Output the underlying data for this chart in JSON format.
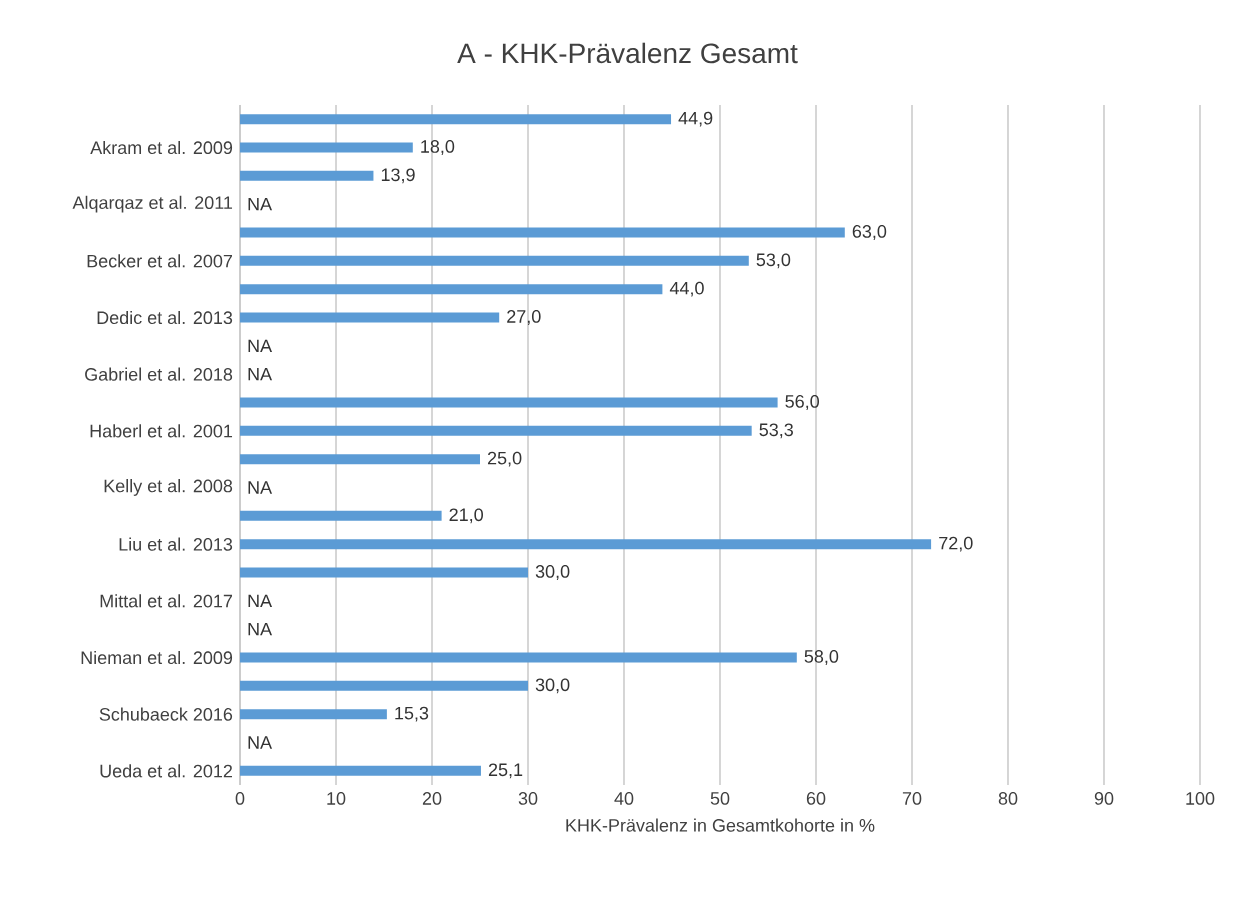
{
  "chart_data": {
    "type": "bar",
    "orientation": "horizontal",
    "title": "A - KHK-Prävalenz Gesamt",
    "xlabel": "KHK-Prävalenz in Gesamtkohorte in %",
    "categories": [
      null,
      "Akram et al. 2009",
      null,
      "Alqarqaz et al. 2011",
      null,
      "Becker et al. 2007",
      null,
      "Dedic et al. 2013",
      null,
      "Gabriel et al. 2018",
      null,
      "Haberl et al. 2001",
      null,
      "Kelly et al. 2008",
      null,
      "Liu et al. 2013",
      null,
      "Mittal et al.  2017",
      null,
      "Nieman et al.  2009",
      null,
      "Schubaeck 2016",
      null,
      "Ueda et al. 2012"
    ],
    "values": [
      44.9,
      18.0,
      13.9,
      null,
      63.0,
      53.0,
      44.0,
      27.0,
      null,
      null,
      56.0,
      53.3,
      25.0,
      null,
      21.0,
      72.0,
      30.0,
      null,
      null,
      58.0,
      30.0,
      15.3,
      null,
      25.1
    ],
    "value_labels": [
      "44,9",
      "18,0",
      "13,9",
      "NA",
      "63,0",
      "53,0",
      "44,0",
      "27,0",
      "NA",
      "NA",
      "56,0",
      "53,3",
      "25,0",
      "NA",
      "21,0",
      "72,0",
      "30,0",
      "NA",
      "NA",
      "58,0",
      "30,0",
      "15,3",
      "NA",
      "25,1"
    ],
    "color": "#5b9bd5",
    "xlim": [
      0,
      100
    ],
    "xticks": [
      0,
      10,
      20,
      30,
      40,
      50,
      60,
      70,
      80,
      90,
      100
    ],
    "grid": "x"
  }
}
